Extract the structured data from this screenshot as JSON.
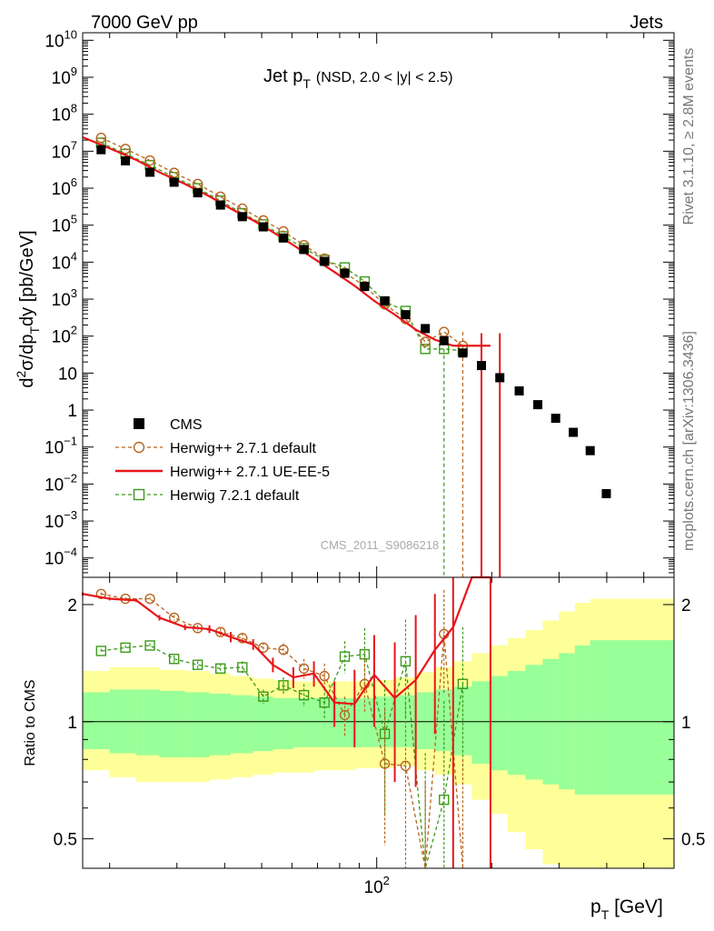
{
  "header": {
    "left": "7000 GeV pp",
    "right": "Jets"
  },
  "side_labels": {
    "rivet": "Rivet 3.1.10, ≥ 2.8M events",
    "mcplots": "mcplots.cern.ch [arXiv:1306.3436]"
  },
  "watermark": "CMS_2011_S9086218",
  "chart_data": [
    {
      "type": "scatter",
      "title_main": "Jet p",
      "title_sub": "T",
      "title_cond": "(NSD, 2.0 < |y| < 2.5)",
      "ylabel": "d²σ/dp_T dy [pb/GeV]",
      "ylabel_parts": {
        "a": "d",
        "b": "2",
        "c": "σ/dp",
        "d": "T",
        "e": "dy [pb/GeV]"
      },
      "xlabel": "p_T [GeV]",
      "xlabel_parts": {
        "a": "p",
        "b": "T",
        "c": " [GeV]"
      },
      "x_log": true,
      "y_log": true,
      "xlim": [
        17,
        600
      ],
      "ylim": [
        3e-05,
        16000000000.0
      ],
      "y_tick_labels": [
        "10^10",
        "10^9",
        "10^8",
        "10^7",
        "10^6",
        "10^5",
        "10^4",
        "10^3",
        "10^2",
        "10",
        "1",
        "10^-1",
        "10^-2",
        "10^-3",
        "10^-4"
      ],
      "x_tick_label": "10^2",
      "legend": [
        {
          "name": "CMS",
          "color": "#000000",
          "style": "square"
        },
        {
          "name": "Herwig++ 2.7.1 default",
          "color": "#b8641e",
          "style": "circle-dashed"
        },
        {
          "name": "Herwig++ 2.7.1 UE-EE-5",
          "color": "#e8151a",
          "style": "solid"
        },
        {
          "name": "Herwig 7.2.1 default",
          "color": "#3c9a19",
          "style": "square-dashed"
        }
      ],
      "series": [
        {
          "name": "CMS",
          "x": [
            19,
            22,
            25.5,
            29.5,
            34,
            39,
            44.5,
            50.5,
            57,
            64.5,
            73,
            82.5,
            93,
            105,
            119,
            134,
            150,
            168,
            188,
            210,
            236,
            264,
            294,
            327,
            362,
            399,
            440,
            546
          ],
          "y": [
            11000000.0,
            5500000.0,
            2700000.0,
            1450000.0,
            750000.0,
            350000.0,
            170000.0,
            90000.0,
            45000.0,
            22000.0,
            10500.0,
            5000.0,
            2200.0,
            900,
            380,
            160,
            75,
            35,
            16,
            7.5,
            3.3,
            1.4,
            0.6,
            0.25,
            0.08,
            0.0055,
            null,
            null
          ]
        },
        {
          "name": "Herwig++ 2.7.1 default",
          "x": [
            19,
            22,
            25.5,
            29.5,
            34,
            39,
            44.5,
            50.5,
            57,
            64.5,
            73,
            82.5,
            93,
            105,
            119,
            134,
            150,
            168
          ],
          "y": [
            23000000.0,
            11500000.0,
            5600000.0,
            2600000.0,
            1300000.0,
            590000.0,
            280000.0,
            135000.0,
            68000.0,
            29000.0,
            12500.0,
            5200.0,
            2250.0,
            720,
            290,
            70,
            130,
            55
          ]
        },
        {
          "name": "Herwig++ 2.7.1 UE-EE-5",
          "x": [
            17,
            20,
            23.5,
            27,
            31.5,
            36.5,
            41.5,
            47.5,
            53.5,
            60.5,
            68.5,
            77.5,
            87.5,
            98.5,
            111.5,
            126.5,
            142,
            158.5,
            177.5,
            198.5
          ],
          "y": [
            24000000.0,
            12000000.0,
            5800000.0,
            2700000.0,
            1300000.0,
            600000.0,
            280000.0,
            135000.0,
            65000.0,
            29000.0,
            12500.0,
            5400.0,
            2300.0,
            900,
            380,
            150,
            80,
            55,
            55,
            55
          ]
        },
        {
          "name": "Herwig 7.2.1 default",
          "x": [
            19,
            22,
            25.5,
            29.5,
            34,
            39,
            44.5,
            50.5,
            57,
            64.5,
            73,
            82.5,
            93,
            105,
            119,
            134,
            150,
            168
          ],
          "y": [
            17000000.0,
            8500000.0,
            4200000.0,
            2000000.0,
            1000000.0,
            460000.0,
            210000.0,
            105000.0,
            50000.0,
            24000.0,
            11500.0,
            7200.0,
            3000.0,
            850,
            480,
            45,
            45,
            40
          ]
        }
      ]
    },
    {
      "type": "line",
      "ylabel": "Ratio to CMS",
      "y_log": true,
      "xlim": [
        17,
        600
      ],
      "ylim": [
        0.42,
        2.35
      ],
      "y_ticks": [
        0.5,
        1,
        2
      ],
      "y_tick_labels": [
        "0.5",
        "1",
        "2"
      ],
      "bands": {
        "x_edges": [
          17,
          20,
          23.5,
          27,
          31.5,
          36.5,
          41.5,
          47.5,
          53.5,
          60.5,
          68.5,
          77.5,
          87.5,
          98.5,
          111.5,
          126.5,
          142,
          158.5,
          177.5,
          198.5,
          220,
          245,
          272,
          300,
          330,
          362,
          400,
          600
        ],
        "yellow_lo": [
          0.75,
          0.72,
          0.7,
          0.7,
          0.7,
          0.71,
          0.72,
          0.73,
          0.74,
          0.74,
          0.75,
          0.75,
          0.76,
          0.76,
          0.77,
          0.75,
          0.73,
          0.69,
          0.63,
          0.58,
          0.52,
          0.47,
          0.43,
          0.42,
          0.42,
          0.42,
          0.42
        ],
        "yellow_hi": [
          1.35,
          1.38,
          1.38,
          1.36,
          1.35,
          1.33,
          1.31,
          1.29,
          1.28,
          1.27,
          1.27,
          1.27,
          1.27,
          1.28,
          1.3,
          1.34,
          1.38,
          1.43,
          1.5,
          1.57,
          1.64,
          1.72,
          1.82,
          1.92,
          2.02,
          2.07,
          2.07
        ],
        "green_lo": [
          0.85,
          0.83,
          0.82,
          0.81,
          0.81,
          0.82,
          0.83,
          0.84,
          0.85,
          0.86,
          0.86,
          0.86,
          0.86,
          0.86,
          0.86,
          0.85,
          0.84,
          0.82,
          0.78,
          0.75,
          0.73,
          0.71,
          0.69,
          0.67,
          0.65,
          0.65,
          0.65
        ],
        "green_hi": [
          1.19,
          1.21,
          1.21,
          1.2,
          1.19,
          1.18,
          1.17,
          1.16,
          1.15,
          1.15,
          1.15,
          1.15,
          1.15,
          1.16,
          1.17,
          1.19,
          1.21,
          1.23,
          1.27,
          1.31,
          1.35,
          1.4,
          1.45,
          1.5,
          1.57,
          1.62,
          1.62
        ]
      },
      "series": [
        {
          "name": "Herwig++ 2.7.1 default",
          "x": [
            19,
            22,
            25.5,
            29.5,
            34,
            39,
            44.5,
            50.5,
            57,
            64.5,
            73,
            82.5,
            93,
            105,
            119,
            134,
            150,
            168
          ],
          "y": [
            2.13,
            2.07,
            2.07,
            1.85,
            1.74,
            1.7,
            1.64,
            1.55,
            1.53,
            1.37,
            1.31,
            1.04,
            1.25,
            0.78,
            0.77,
            0.3,
            1.68,
            0.3
          ],
          "err": [
            0.02,
            0.02,
            0.02,
            0.03,
            0.03,
            0.04,
            0.05,
            0.05,
            0.06,
            0.08,
            0.1,
            0.12,
            0.2,
            0.3,
            0.35,
            0.4,
            0.5,
            0.5
          ]
        },
        {
          "name": "Herwig++ 2.7.1 UE-EE-5",
          "x": [
            17,
            20,
            23.5,
            27,
            31.5,
            36.5,
            41.5,
            47.5,
            53.5,
            60.5,
            68.5,
            77.5,
            87.5,
            98.5,
            111.5,
            126.5,
            142,
            158.5,
            177.5,
            198.5
          ],
          "y": [
            2.13,
            2.07,
            2.05,
            1.85,
            1.75,
            1.73,
            1.65,
            1.58,
            1.4,
            1.3,
            1.33,
            1.12,
            1.11,
            1.32,
            1.15,
            1.28,
            1.53,
            1.75,
            2.5,
            2.5
          ],
          "err": [
            0.02,
            0.02,
            0.02,
            0.03,
            0.03,
            0.04,
            0.05,
            0.05,
            0.06,
            0.08,
            0.1,
            0.15,
            0.25,
            0.35,
            0.45,
            0.6,
            0.6,
            1.5,
            0,
            0
          ]
        },
        {
          "name": "Herwig 7.2.1 default",
          "x": [
            19,
            22,
            25.5,
            29.5,
            34,
            39,
            44.5,
            50.5,
            57,
            64.5,
            73,
            82.5,
            93,
            105,
            119,
            134,
            150,
            168
          ],
          "y": [
            1.52,
            1.55,
            1.57,
            1.45,
            1.4,
            1.37,
            1.38,
            1.16,
            1.24,
            1.17,
            1.12,
            1.47,
            1.49,
            0.93,
            1.43,
            0.33,
            0.63,
            1.25
          ],
          "err": [
            0.02,
            0.02,
            0.02,
            0.03,
            0.03,
            0.04,
            0.05,
            0.05,
            0.06,
            0.08,
            0.1,
            0.14,
            0.25,
            0.35,
            0.4,
            0.5,
            0.5,
            0.5
          ]
        }
      ]
    }
  ]
}
